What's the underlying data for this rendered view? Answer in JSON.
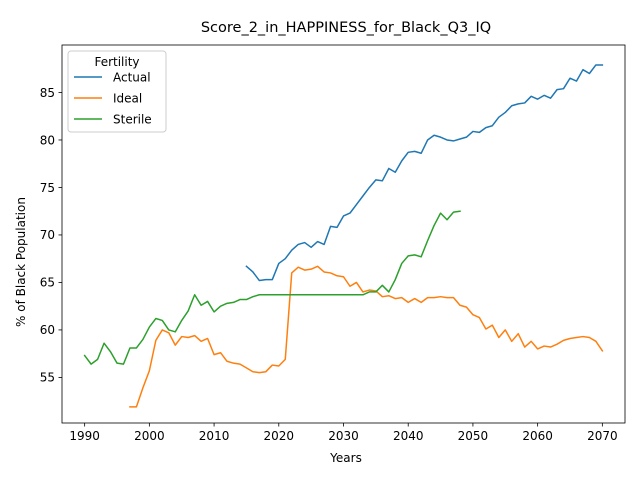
{
  "chart_data": {
    "type": "line",
    "title": "Score_2_in_HAPPINESS_for_Black_Q3_IQ",
    "xlabel": "Years",
    "ylabel": "% of Black Population",
    "xlim": [
      1986.5,
      2073.5
    ],
    "ylim": [
      50.2,
      90.0
    ],
    "xticks": [
      1990,
      2000,
      2010,
      2020,
      2030,
      2040,
      2050,
      2060,
      2070
    ],
    "yticks": [
      55,
      60,
      65,
      70,
      75,
      80,
      85
    ],
    "grid": false,
    "legend": {
      "title": "Fertility",
      "placement": "top-left"
    },
    "series": [
      {
        "name": "Actual",
        "color": "#1f77b4",
        "x": [
          2015,
          2016,
          2017,
          2018,
          2019,
          2020,
          2021,
          2022,
          2023,
          2024,
          2025,
          2026,
          2027,
          2028,
          2029,
          2030,
          2031,
          2032,
          2033,
          2034,
          2035,
          2036,
          2037,
          2038,
          2039,
          2040,
          2041,
          2042,
          2043,
          2044,
          2045,
          2046,
          2047,
          2048,
          2049,
          2050,
          2051,
          2052,
          2053,
          2054,
          2055,
          2056,
          2057,
          2058,
          2059,
          2060,
          2061,
          2062,
          2063,
          2064,
          2065,
          2066,
          2067,
          2068,
          2069,
          2070
        ],
        "y": [
          66.7,
          66.1,
          65.2,
          65.3,
          65.3,
          67.0,
          67.5,
          68.4,
          69.0,
          69.2,
          68.7,
          69.3,
          69.0,
          70.9,
          70.8,
          72.0,
          72.3,
          73.2,
          74.1,
          75.0,
          75.8,
          75.7,
          77.0,
          76.6,
          77.8,
          78.7,
          78.8,
          78.6,
          80.0,
          80.5,
          80.3,
          80.0,
          79.9,
          80.1,
          80.3,
          80.9,
          80.8,
          81.3,
          81.5,
          82.4,
          82.9,
          83.6,
          83.8,
          83.9,
          84.6,
          84.3,
          84.7,
          84.4,
          85.3,
          85.4,
          86.5,
          86.2,
          87.4,
          87.0,
          87.9,
          87.9
        ]
      },
      {
        "name": "Ideal",
        "color": "#ff7f0e",
        "x": [
          1997,
          1998,
          1999,
          2000,
          2001,
          2002,
          2003,
          2004,
          2005,
          2006,
          2007,
          2008,
          2009,
          2010,
          2011,
          2012,
          2013,
          2014,
          2015,
          2016,
          2017,
          2018,
          2019,
          2020,
          2021,
          2022,
          2023,
          2024,
          2025,
          2026,
          2027,
          2028,
          2029,
          2030,
          2031,
          2032,
          2033,
          2034,
          2035,
          2036,
          2037,
          2038,
          2039,
          2040,
          2041,
          2042,
          2043,
          2044,
          2045,
          2046,
          2047,
          2048,
          2049,
          2050,
          2051,
          2052,
          2053,
          2054,
          2055,
          2056,
          2057,
          2058,
          2059,
          2060,
          2061,
          2062,
          2063,
          2064,
          2065,
          2066,
          2067,
          2068,
          2069,
          2070
        ],
        "y": [
          51.9,
          51.9,
          53.9,
          55.7,
          58.9,
          60.0,
          59.7,
          58.4,
          59.3,
          59.2,
          59.4,
          58.8,
          59.1,
          57.4,
          57.6,
          56.7,
          56.5,
          56.4,
          56.0,
          55.6,
          55.5,
          55.6,
          56.3,
          56.2,
          56.9,
          66.0,
          66.6,
          66.3,
          66.4,
          66.7,
          66.1,
          66.0,
          65.7,
          65.6,
          64.6,
          65.0,
          64.0,
          64.2,
          64.1,
          63.5,
          63.6,
          63.3,
          63.4,
          62.9,
          63.3,
          62.9,
          63.4,
          63.4,
          63.5,
          63.4,
          63.4,
          62.6,
          62.4,
          61.6,
          61.3,
          60.1,
          60.5,
          59.2,
          60.0,
          58.8,
          59.6,
          58.2,
          58.8,
          58.0,
          58.3,
          58.2,
          58.5,
          58.9,
          59.1,
          59.2,
          59.3,
          59.2,
          58.8,
          57.8
        ]
      },
      {
        "name": "Sterile",
        "color": "#2ca02c",
        "x": [
          1990,
          1991,
          1992,
          1993,
          1994,
          1995,
          1996,
          1997,
          1998,
          1999,
          2000,
          2001,
          2002,
          2003,
          2004,
          2005,
          2006,
          2007,
          2008,
          2009,
          2010,
          2011,
          2012,
          2013,
          2014,
          2015,
          2016,
          2017,
          2018,
          2019,
          2020,
          2021,
          2022,
          2023,
          2024,
          2025,
          2026,
          2027,
          2028,
          2029,
          2030,
          2031,
          2032,
          2033,
          2034,
          2035,
          2036,
          2037,
          2038,
          2039,
          2040,
          2041,
          2042,
          2043,
          2044,
          2045,
          2046,
          2047,
          2048
        ],
        "y": [
          57.3,
          56.4,
          56.9,
          58.6,
          57.7,
          56.5,
          56.4,
          58.1,
          58.1,
          59.0,
          60.3,
          61.2,
          61.0,
          60.0,
          59.8,
          61.0,
          62.0,
          63.7,
          62.6,
          63.0,
          61.9,
          62.5,
          62.8,
          62.9,
          63.2,
          63.2,
          63.5,
          63.7,
          63.7,
          63.7,
          63.7,
          63.7,
          63.7,
          63.7,
          63.7,
          63.7,
          63.7,
          63.7,
          63.7,
          63.7,
          63.7,
          63.7,
          63.7,
          63.7,
          64.0,
          64.0,
          64.7,
          64.0,
          65.3,
          67.0,
          67.8,
          67.9,
          67.7,
          69.4,
          71.0,
          72.3,
          71.6,
          72.4,
          72.5
        ]
      }
    ]
  }
}
